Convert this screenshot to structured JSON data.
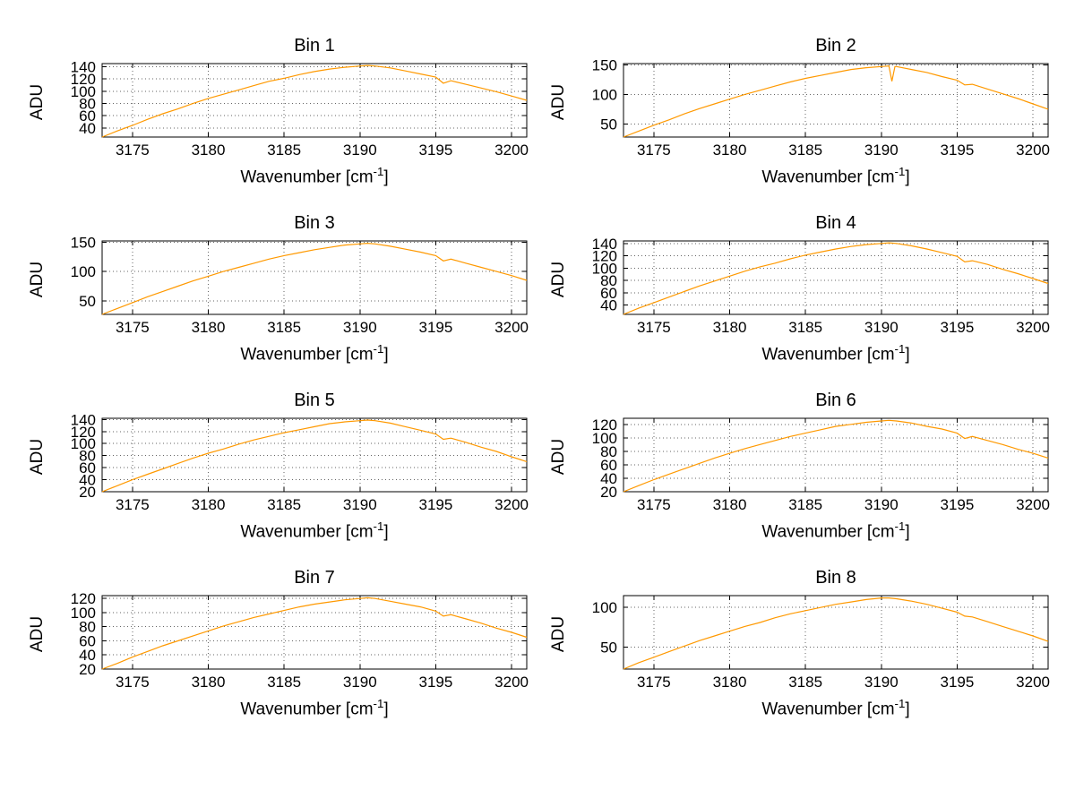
{
  "figure": {
    "background": "#ffffff"
  },
  "common": {
    "ylabel": "ADU",
    "xlabel_base": "Wavenumber [cm",
    "xlabel_sup": "-1",
    "xlabel_close": "]",
    "xlim": [
      3173,
      3201
    ],
    "x_ticks": [
      3175,
      3180,
      3185,
      3190,
      3195,
      3200
    ],
    "line_color": "#ff9900",
    "grid_color": "#666666",
    "axis_color": "#000000"
  },
  "chart_data": [
    {
      "type": "line",
      "title": "Bin 1",
      "xlabel": "Wavenumber [cm^-1]",
      "ylabel": "ADU",
      "ylim": [
        25,
        145
      ],
      "y_ticks": [
        40,
        60,
        80,
        100,
        120,
        140
      ],
      "x": [
        3173,
        3174,
        3175,
        3176,
        3177,
        3178,
        3179,
        3180,
        3181,
        3182,
        3183,
        3184,
        3185,
        3186,
        3187,
        3188,
        3189,
        3190,
        3190.5,
        3191,
        3192,
        3193,
        3194,
        3195,
        3195.5,
        3196,
        3197,
        3198,
        3199,
        3200,
        3201
      ],
      "y": [
        25,
        35,
        44,
        54,
        63,
        71,
        80,
        88,
        95,
        102,
        109,
        116,
        121,
        127,
        132,
        136,
        139,
        141,
        142,
        141,
        138,
        133,
        128,
        123,
        113,
        117,
        111,
        105,
        99,
        92,
        85
      ]
    },
    {
      "type": "line",
      "title": "Bin 2",
      "xlabel": "Wavenumber [cm^-1]",
      "ylabel": "ADU",
      "ylim": [
        28,
        152
      ],
      "y_ticks": [
        50,
        100,
        150
      ],
      "x": [
        3173,
        3174,
        3175,
        3176,
        3177,
        3178,
        3179,
        3180,
        3181,
        3182,
        3183,
        3184,
        3185,
        3186,
        3187,
        3188,
        3189,
        3190,
        3190.5,
        3190.7,
        3190.9,
        3191,
        3192,
        3193,
        3194,
        3195,
        3195.5,
        3196,
        3197,
        3198,
        3199,
        3200,
        3201
      ],
      "y": [
        28,
        38,
        48,
        57,
        67,
        76,
        84,
        92,
        100,
        107,
        114,
        121,
        127,
        132,
        137,
        142,
        145,
        147,
        148,
        122,
        147,
        147,
        142,
        137,
        130,
        124,
        116,
        117,
        109,
        101,
        93,
        84,
        75
      ]
    },
    {
      "type": "line",
      "title": "Bin 3",
      "xlabel": "Wavenumber [cm^-1]",
      "ylabel": "ADU",
      "ylim": [
        27,
        152
      ],
      "y_ticks": [
        50,
        100,
        150
      ],
      "x": [
        3173,
        3174,
        3175,
        3176,
        3177,
        3178,
        3179,
        3180,
        3181,
        3182,
        3183,
        3184,
        3185,
        3186,
        3187,
        3188,
        3189,
        3190,
        3190.5,
        3191,
        3192,
        3193,
        3194,
        3195,
        3195.5,
        3196,
        3197,
        3198,
        3199,
        3200,
        3201
      ],
      "y": [
        27,
        37,
        47,
        57,
        66,
        75,
        84,
        92,
        100,
        107,
        114,
        121,
        127,
        132,
        137,
        141,
        145,
        147,
        148,
        147,
        143,
        138,
        133,
        127,
        118,
        121,
        114,
        107,
        100,
        93,
        85
      ]
    },
    {
      "type": "line",
      "title": "Bin 4",
      "xlabel": "Wavenumber [cm^-1]",
      "ylabel": "ADU",
      "ylim": [
        25,
        144
      ],
      "y_ticks": [
        40,
        60,
        80,
        100,
        120,
        140
      ],
      "x": [
        3173,
        3174,
        3175,
        3176,
        3177,
        3178,
        3179,
        3180,
        3181,
        3182,
        3183,
        3184,
        3185,
        3186,
        3187,
        3188,
        3189,
        3190,
        3190.5,
        3191,
        3192,
        3193,
        3194,
        3195,
        3195.5,
        3196,
        3197,
        3198,
        3199,
        3200,
        3201
      ],
      "y": [
        25,
        35,
        44,
        53,
        62,
        71,
        79,
        87,
        95,
        102,
        108,
        115,
        121,
        126,
        131,
        135,
        138,
        140,
        141,
        140,
        136,
        131,
        125,
        119,
        110,
        112,
        106,
        98,
        91,
        83,
        75
      ]
    },
    {
      "type": "line",
      "title": "Bin 5",
      "xlabel": "Wavenumber [cm^-1]",
      "ylabel": "ADU",
      "ylim": [
        20,
        142
      ],
      "y_ticks": [
        20,
        40,
        60,
        80,
        100,
        120,
        140
      ],
      "x": [
        3173,
        3174,
        3175,
        3176,
        3177,
        3178,
        3179,
        3180,
        3181,
        3182,
        3183,
        3184,
        3185,
        3186,
        3187,
        3188,
        3189,
        3190,
        3190.5,
        3191,
        3192,
        3193,
        3194,
        3195,
        3195.5,
        3196,
        3197,
        3198,
        3199,
        3200,
        3201
      ],
      "y": [
        20,
        30,
        40,
        49,
        58,
        67,
        76,
        84,
        91,
        99,
        106,
        112,
        118,
        123,
        128,
        133,
        136,
        138,
        139,
        138,
        134,
        128,
        122,
        116,
        107,
        109,
        102,
        94,
        87,
        78,
        70
      ]
    },
    {
      "type": "line",
      "title": "Bin 6",
      "xlabel": "Wavenumber [cm^-1]",
      "ylabel": "ADU",
      "ylim": [
        20,
        129
      ],
      "y_ticks": [
        20,
        40,
        60,
        80,
        100,
        120
      ],
      "x": [
        3173,
        3174,
        3175,
        3176,
        3177,
        3178,
        3179,
        3180,
        3181,
        3182,
        3183,
        3184,
        3185,
        3186,
        3187,
        3188,
        3189,
        3190,
        3190.5,
        3191,
        3192,
        3193,
        3194,
        3195,
        3195.5,
        3196,
        3197,
        3198,
        3199,
        3200,
        3201
      ],
      "y": [
        20,
        29,
        38,
        46,
        54,
        62,
        70,
        77,
        84,
        90,
        96,
        102,
        107,
        112,
        117,
        120,
        123,
        125,
        126,
        125,
        122,
        117,
        113,
        107,
        99,
        102,
        96,
        90,
        83,
        77,
        70
      ]
    },
    {
      "type": "line",
      "title": "Bin 7",
      "xlabel": "Wavenumber [cm^-1]",
      "ylabel": "ADU",
      "ylim": [
        20,
        124
      ],
      "y_ticks": [
        20,
        40,
        60,
        80,
        100,
        120
      ],
      "x": [
        3173,
        3174,
        3175,
        3176,
        3177,
        3178,
        3179,
        3180,
        3181,
        3182,
        3183,
        3184,
        3185,
        3186,
        3187,
        3188,
        3189,
        3190,
        3190.5,
        3191,
        3192,
        3193,
        3194,
        3195,
        3195.5,
        3196,
        3197,
        3198,
        3199,
        3200,
        3201
      ],
      "y": [
        20,
        28,
        37,
        45,
        53,
        60,
        67,
        74,
        81,
        87,
        93,
        98,
        103,
        108,
        112,
        115,
        118,
        120,
        121,
        120,
        116,
        112,
        108,
        102,
        95,
        97,
        91,
        85,
        78,
        72,
        65
      ]
    },
    {
      "type": "line",
      "title": "Bin 8",
      "xlabel": "Wavenumber [cm^-1]",
      "ylabel": "ADU",
      "ylim": [
        22,
        115
      ],
      "y_ticks": [
        50,
        100
      ],
      "x": [
        3173,
        3174,
        3175,
        3176,
        3177,
        3178,
        3179,
        3180,
        3181,
        3182,
        3183,
        3184,
        3185,
        3186,
        3187,
        3188,
        3189,
        3190,
        3190.5,
        3191,
        3192,
        3193,
        3194,
        3195,
        3195.5,
        3196,
        3197,
        3198,
        3199,
        3200,
        3201
      ],
      "y": [
        22,
        30,
        37,
        44,
        51,
        58,
        64,
        70,
        76,
        81,
        87,
        92,
        96,
        100,
        104,
        107,
        110,
        112,
        112,
        111,
        108,
        104,
        99,
        94,
        89,
        88,
        82,
        76,
        70,
        64,
        57
      ]
    }
  ]
}
